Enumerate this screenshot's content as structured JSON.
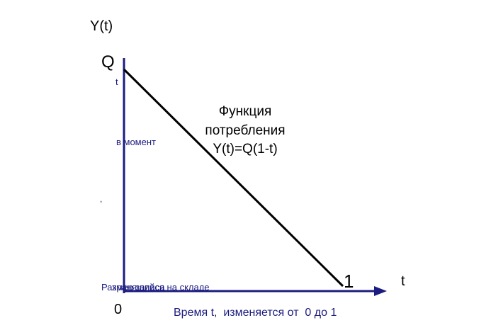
{
  "diagram": {
    "y_axis_label": "Y(t)",
    "x_axis_label": "t",
    "origin_label": "0",
    "q_label": "Q",
    "q_subscript": "t",
    "end_label": "1",
    "function_title_line1": "Функция",
    "function_title_line2": "потребления",
    "function_formula": "Y(t)=Q(1-t)",
    "vertical_text_fragment": "в момент",
    "small_mark": ",",
    "overlap_text_1": "Размер запаса",
    "overlap_text_2": "хранящийся на складе",
    "x_axis_caption": "Время t,  изменяется от  0 до 1",
    "colors": {
      "axis": "#1c1c80",
      "line": "#000000",
      "text": "#000000",
      "blue_text": "#1c1c80"
    }
  }
}
